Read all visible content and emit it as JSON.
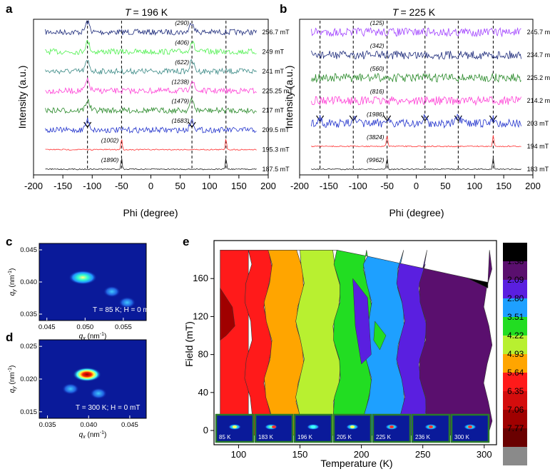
{
  "chart_data": [
    {
      "panel": "a",
      "type": "line",
      "title_var": "T",
      "title_value": "= 196 K",
      "xlabel": "Phi (degree)",
      "ylabel": "Intensity (a.u.)",
      "xlim": [
        -200,
        200
      ],
      "xticks": [
        "-200",
        "-150",
        "-100",
        "-50",
        "0",
        "50",
        "100",
        "150",
        "200"
      ],
      "xtick_values": [
        -200,
        -150,
        -100,
        -50,
        0,
        50,
        100,
        150,
        200
      ],
      "dashed_lines_deg": [
        -108,
        -50,
        70,
        128
      ],
      "series": [
        {
          "name": "256.7 mT",
          "color": "#1c2a7a",
          "peaks": [
            -108,
            70
          ],
          "peak_label": "(290)"
        },
        {
          "name": "249 mT",
          "color": "#4df04d",
          "peaks": [
            -108,
            70
          ],
          "peak_label": "(406)"
        },
        {
          "name": "241 mT",
          "color": "#3b8a86",
          "peaks": [
            -108,
            70
          ],
          "peak_label": "(622)"
        },
        {
          "name": "225.25 mT",
          "color": "#ff3fd6",
          "peaks": [
            -108,
            70
          ],
          "peak_label": "(1238)"
        },
        {
          "name": "217 mT",
          "color": "#2a8a2a",
          "peaks": [
            -108,
            70
          ],
          "peak_label": "(1479)"
        },
        {
          "name": "209.5 mT",
          "color": "#2233cc",
          "peaks": [
            -108,
            70
          ],
          "peak_label": "(1683)"
        },
        {
          "name": "195.3 mT",
          "color": "#ff3030",
          "peaks": [
            -50,
            128
          ],
          "peak_label": "(1002)"
        },
        {
          "name": "187.5 mT",
          "color": "#222222",
          "peaks": [
            -50,
            128
          ],
          "peak_label": "(1890)"
        }
      ]
    },
    {
      "panel": "b",
      "type": "line",
      "title_var": "T",
      "title_value": "= 225 K",
      "xlabel": "Phi (degree)",
      "ylabel": "Intensity (a.u.)",
      "xlim": [
        -200,
        200
      ],
      "xticks": [
        "-200",
        "-150",
        "-100",
        "-50",
        "0",
        "50",
        "100",
        "150",
        "200"
      ],
      "xtick_values": [
        -200,
        -150,
        -100,
        -50,
        0,
        50,
        100,
        150,
        200
      ],
      "dashed_lines_deg": [
        -165,
        -108,
        -50,
        15,
        72,
        132
      ],
      "series": [
        {
          "name": "245.7 mT",
          "color": "#a040ff",
          "peaks": [],
          "peak_label": "(125)"
        },
        {
          "name": "234.7 mT",
          "color": "#1c2a7a",
          "peaks": [],
          "peak_label": "(342)"
        },
        {
          "name": "225.2 mT",
          "color": "#2a8a2a",
          "peaks": [],
          "peak_label": "(560)"
        },
        {
          "name": "214.2 mT",
          "color": "#ff3fd6",
          "peaks": [],
          "peak_label": "(816)"
        },
        {
          "name": "203 mT",
          "color": "#2233cc",
          "peaks": [
            -165,
            -108,
            -50,
            15,
            72,
            132
          ],
          "peak_label": "(1986)"
        },
        {
          "name": "194 mT",
          "color": "#ff3030",
          "peaks": [
            -50,
            132
          ],
          "peak_label": "(3824)"
        },
        {
          "name": "183 mT",
          "color": "#222222",
          "peaks": [
            -50,
            132
          ],
          "peak_label": "(9962)"
        }
      ]
    },
    {
      "panel": "c",
      "type": "heatmap",
      "xlabel": "q",
      "xlabel_sub": "x",
      "xlabel_unit": " (nm",
      "xlabel_exp": "-1",
      "xlabel_close": ")",
      "ylabel": "q",
      "ylabel_sub": "y",
      "ylabel_unit": " (nm",
      "ylabel_exp": "-1",
      "ylabel_close": ")",
      "xlim": [
        0.044,
        0.058
      ],
      "ylim": [
        0.034,
        0.046
      ],
      "xticks": [
        "0.045",
        "0.050",
        "0.055"
      ],
      "yticks": [
        "0.045",
        "0.040",
        "0.035"
      ],
      "annotation": "T = 85 K; H = 0 mT",
      "spots": [
        {
          "x": 0.0497,
          "y": 0.0407,
          "intensity": 1.0
        },
        {
          "x": 0.0535,
          "y": 0.0385,
          "intensity": 0.5
        },
        {
          "x": 0.0555,
          "y": 0.0368,
          "intensity": 0.4
        }
      ]
    },
    {
      "panel": "d",
      "type": "heatmap",
      "xlabel": "q",
      "xlabel_sub": "x",
      "xlabel_unit": " (nm",
      "xlabel_exp": "-1",
      "xlabel_close": ")",
      "ylabel": "q",
      "ylabel_sub": "y",
      "ylabel_unit": " (nm",
      "ylabel_exp": "-1",
      "ylabel_close": ")",
      "xlim": [
        0.034,
        0.047
      ],
      "ylim": [
        0.014,
        0.026
      ],
      "xticks": [
        "0.035",
        "0.040",
        "0.045"
      ],
      "yticks": [
        "0.025",
        "0.020",
        "0.015"
      ],
      "annotation": "T = 300 K; H = 0 mT",
      "spots": [
        {
          "x": 0.0398,
          "y": 0.0207,
          "intensity": 1.0
        },
        {
          "x": 0.0412,
          "y": 0.0178,
          "intensity": 0.55
        },
        {
          "x": 0.0378,
          "y": 0.0185,
          "intensity": 0.45
        }
      ]
    },
    {
      "panel": "e",
      "type": "area",
      "subtype": "contour",
      "xlabel": "Temperature (K)",
      "ylabel": "Field (mT)",
      "xlim": [
        80,
        310
      ],
      "ylim": [
        -15,
        200
      ],
      "xticks": [
        "100",
        "150",
        "200",
        "250",
        "300"
      ],
      "xtick_values": [
        100,
        150,
        200,
        250,
        300
      ],
      "yticks": [
        "0",
        "40",
        "80",
        "120",
        "160"
      ],
      "ytick_values": [
        0,
        40,
        80,
        120,
        160
      ],
      "colorbar_levels": [
        "1.38",
        "2.09",
        "2.80",
        "3.51",
        "4.22",
        "4.93",
        "5.64",
        "6.35",
        "7.06",
        "7.77",
        ""
      ],
      "colorbar_colors": [
        "#000000",
        "#5a0f6e",
        "#5a1fe0",
        "#1ea0ff",
        "#22dd22",
        "#b8f030",
        "#ffa500",
        "#ff1a1a",
        "#d40d0d",
        "#a00000",
        "#6a0000",
        "#8a8a8a"
      ],
      "region_boundaries_K": [
        108,
        124,
        150,
        180,
        205,
        232,
        250
      ],
      "insets": [
        "85 K",
        "183 K",
        "196 K",
        "205 K",
        "225 K",
        "236 K",
        "300 K"
      ]
    }
  ],
  "panel_labels": [
    "a",
    "b",
    "c",
    "d",
    "e"
  ]
}
